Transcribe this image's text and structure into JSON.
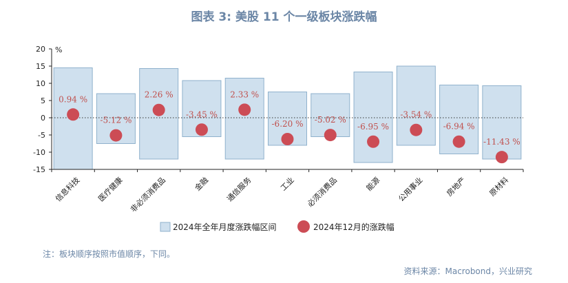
{
  "title": "图表 3:  美股 11 个一级板块涨跌幅",
  "note": "注：板块顺序按照市值顺序，下同。",
  "source": "资料来源：Macrobond，兴业研究",
  "colors": {
    "range_fill": "#cfe0ee",
    "range_stroke": "#8fb1cc",
    "dot": "#cc4c55",
    "label": "#c0504d"
  },
  "chart_data": {
    "type": "bar",
    "ylabel": "%",
    "ylim": [
      -15,
      20
    ],
    "yticks": [
      -15,
      -10,
      -5,
      0,
      5,
      10,
      15,
      20
    ],
    "categories": [
      "信息科技",
      "医疗健康",
      "非必须消费品",
      "金融",
      "通信服务",
      "工业",
      "必须消费品",
      "能源",
      "公用事业",
      "房地产",
      "原材料"
    ],
    "range_series": {
      "name": "2024年全年月度涨跌幅区间",
      "low": [
        -15,
        -7.5,
        -12,
        -5.5,
        -12,
        -8,
        -5.5,
        -13,
        -8,
        -10.5,
        -12
      ],
      "high": [
        14.5,
        7,
        14.3,
        10.8,
        11.5,
        7.5,
        7,
        13.3,
        15,
        9.5,
        9.3
      ]
    },
    "point_series": {
      "name": "2024年12月的涨跌幅",
      "values": [
        0.94,
        -5.12,
        2.26,
        -3.45,
        2.33,
        -6.2,
        -5.02,
        -6.95,
        -3.54,
        -6.94,
        -11.43
      ],
      "labels": [
        "0.94 %",
        "-5.12 %",
        "2.26 %",
        "-3.45 %",
        "2.33 %",
        "-6.20 %",
        "-5.02 %",
        "-6.95 %",
        "-3.54 %",
        "-6.94 %",
        "-11.43 %"
      ]
    }
  }
}
